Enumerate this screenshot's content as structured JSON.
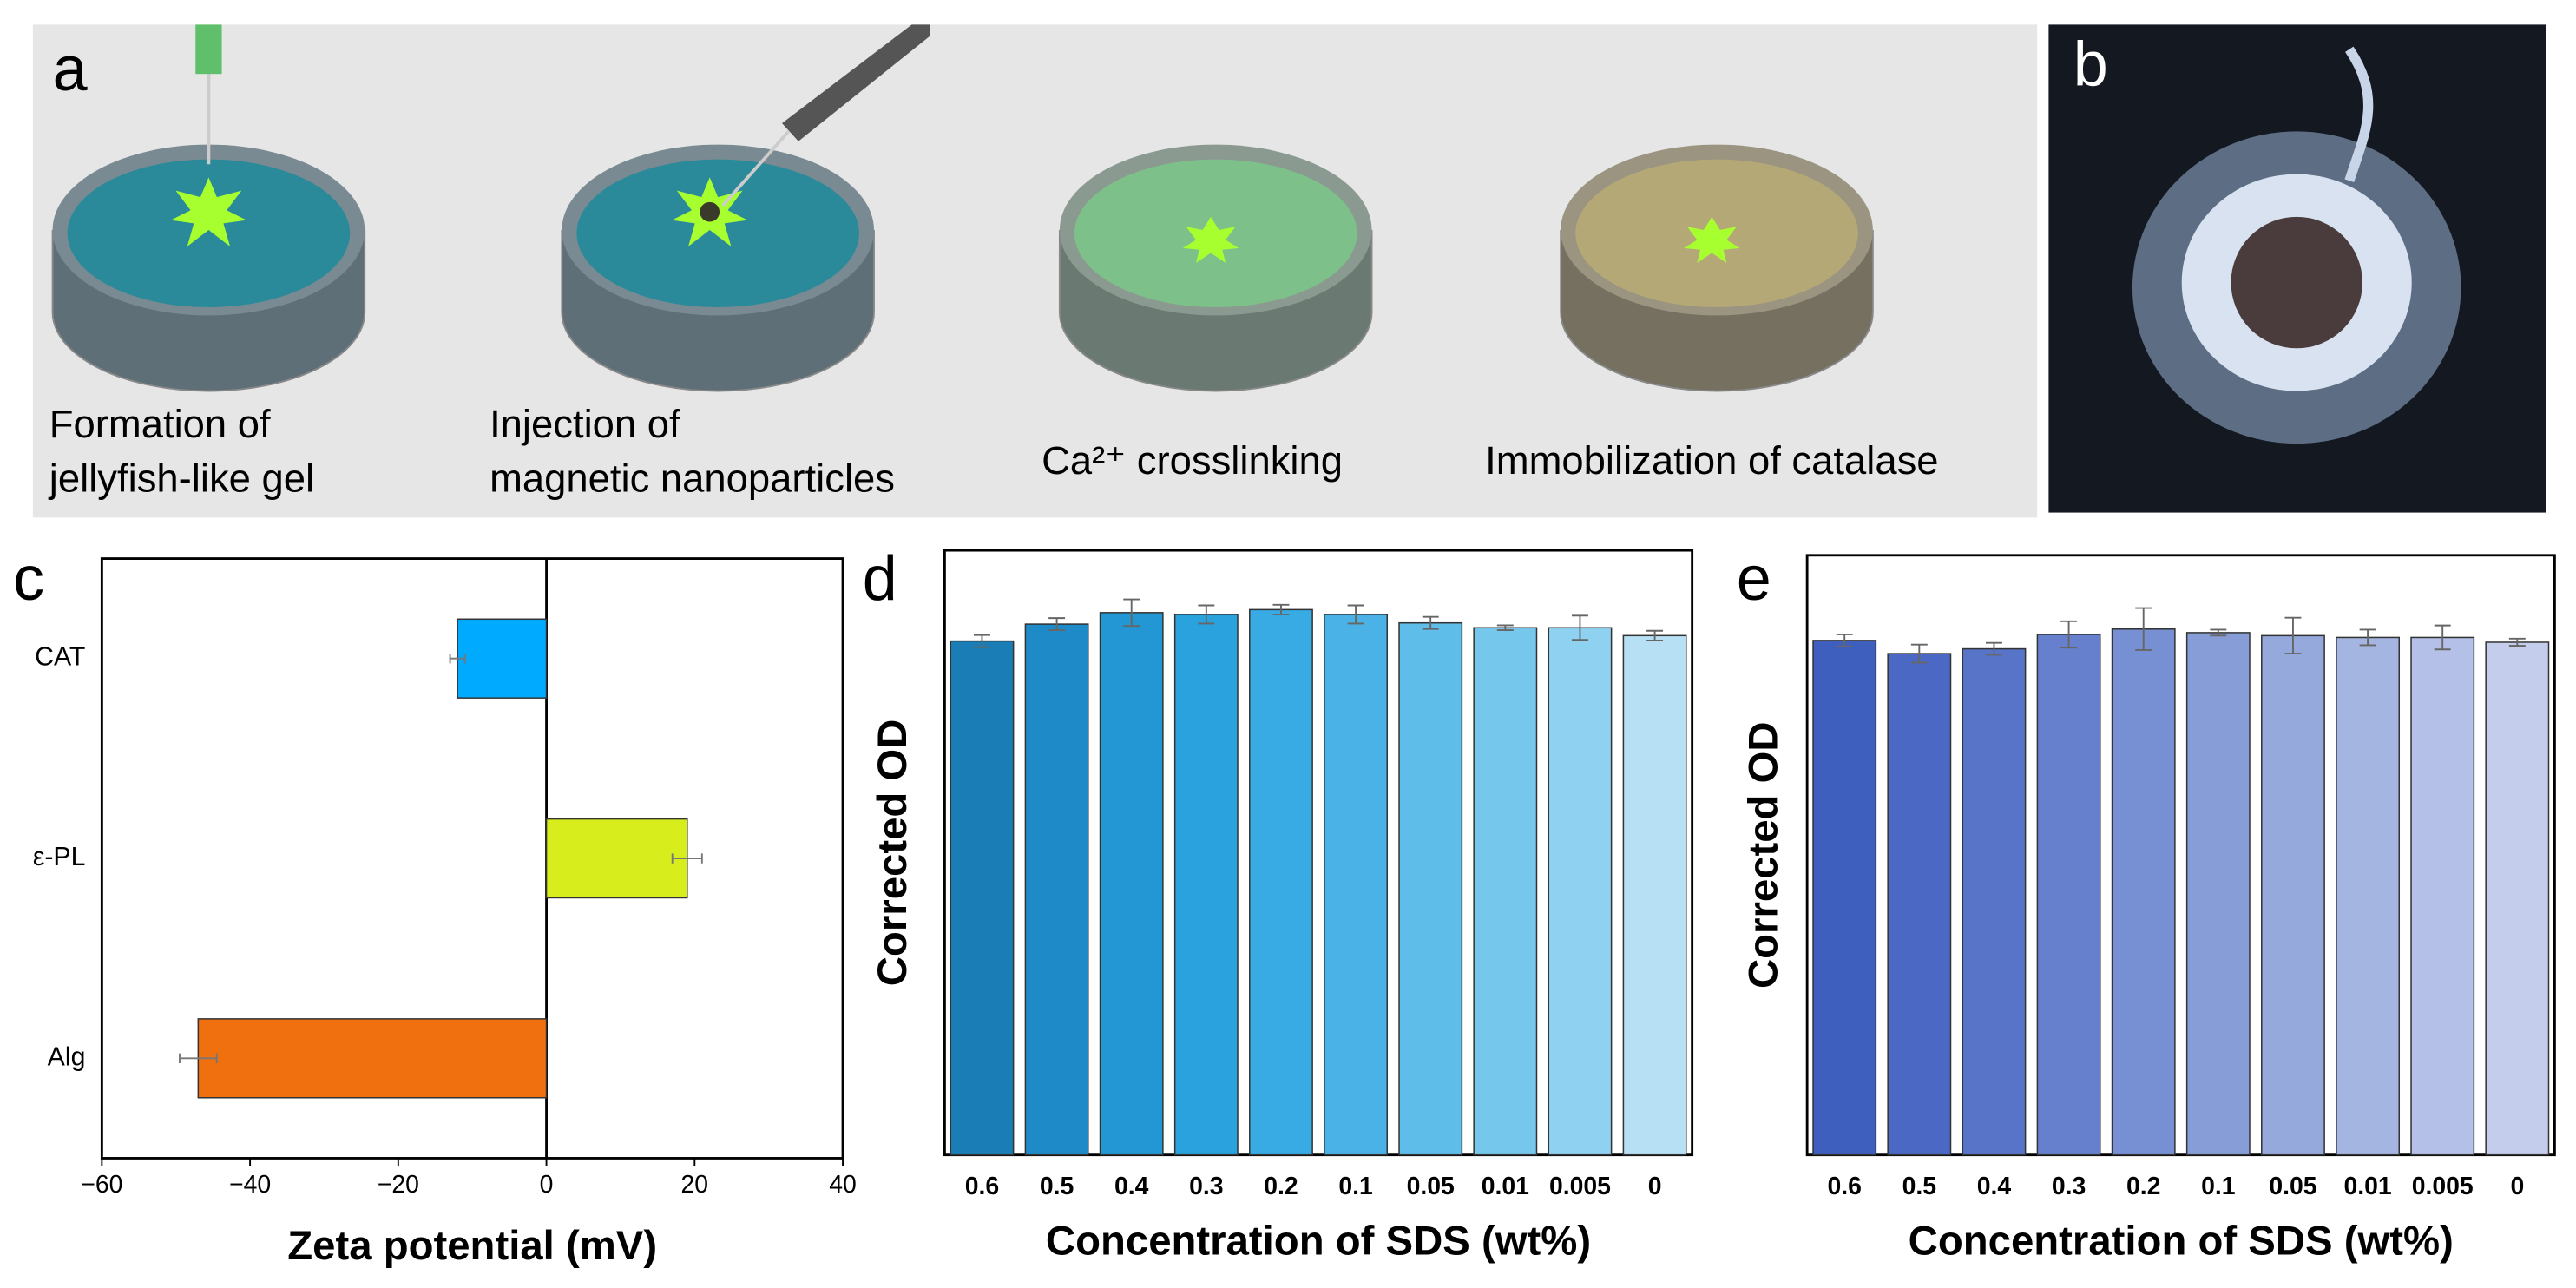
{
  "panels": {
    "a": {
      "label": "a",
      "steps": [
        [
          "Formation of",
          "jellyfish-like gel"
        ],
        [
          "Injection of",
          "magnetic nanoparticles"
        ],
        [
          "Ca²⁺ crosslinking"
        ],
        [
          "Immobilization of catalase"
        ]
      ]
    },
    "b": {
      "label": "b"
    }
  },
  "chart_data": [
    {
      "type": "hbar",
      "panel": "c",
      "xlabel": "Zeta potential (mV)",
      "categories": [
        "CAT",
        "ε-PL",
        "Alg"
      ],
      "values": [
        -12,
        19,
        -47
      ],
      "errors": [
        1,
        2,
        2.5
      ],
      "colors": [
        "#00aaff",
        "#d8ed1c",
        "#f07010"
      ],
      "xlim": [
        -60,
        40
      ],
      "xticks": [
        {
          "value": -60,
          "label": "−60"
        },
        {
          "value": -40,
          "label": "−40"
        },
        {
          "value": -20,
          "label": "−20"
        },
        0,
        20,
        40
      ]
    },
    {
      "type": "bar",
      "panel": "d",
      "xlabel": "Concentration of SDS (wt%)",
      "ylabel": "Corrected OD",
      "categories": [
        "0.6",
        "0.5",
        "0.4",
        "0.3",
        "0.2",
        "0.1",
        "0.05",
        "0.01",
        "0.005",
        "0"
      ],
      "values": [
        0.85,
        0.878,
        0.897,
        0.894,
        0.902,
        0.894,
        0.88,
        0.872,
        0.872,
        0.859
      ],
      "errors": [
        0.01,
        0.01,
        0.022,
        0.015,
        0.008,
        0.015,
        0.01,
        0.004,
        0.02,
        0.008
      ],
      "colors": [
        "#1a7db5",
        "#1e8bc8",
        "#2297d4",
        "#2aa2de",
        "#38abe4",
        "#4ab2e6",
        "#5fbde9",
        "#76c7ec",
        "#8fd1f0",
        "#b8e0f5"
      ],
      "ylim": [
        0,
        1
      ]
    },
    {
      "type": "bar",
      "panel": "e",
      "xlabel": "Concentration of SDS (wt%)",
      "ylabel": "Corrected OD",
      "categories": [
        "0.6",
        "0.5",
        "0.4",
        "0.3",
        "0.2",
        "0.1",
        "0.05",
        "0.01",
        "0.005",
        "0"
      ],
      "values": [
        0.858,
        0.836,
        0.844,
        0.868,
        0.877,
        0.871,
        0.866,
        0.863,
        0.863,
        0.855
      ],
      "errors": [
        0.01,
        0.015,
        0.01,
        0.022,
        0.035,
        0.005,
        0.03,
        0.013,
        0.02,
        0.006
      ],
      "colors": [
        "#3f5fbf",
        "#4a68c4",
        "#5774c9",
        "#6680cd",
        "#7690d3",
        "#869dd8",
        "#95a9dd",
        "#a5b5e2",
        "#b4c0e7",
        "#c5cdec"
      ],
      "ylim": [
        0,
        1
      ]
    }
  ]
}
